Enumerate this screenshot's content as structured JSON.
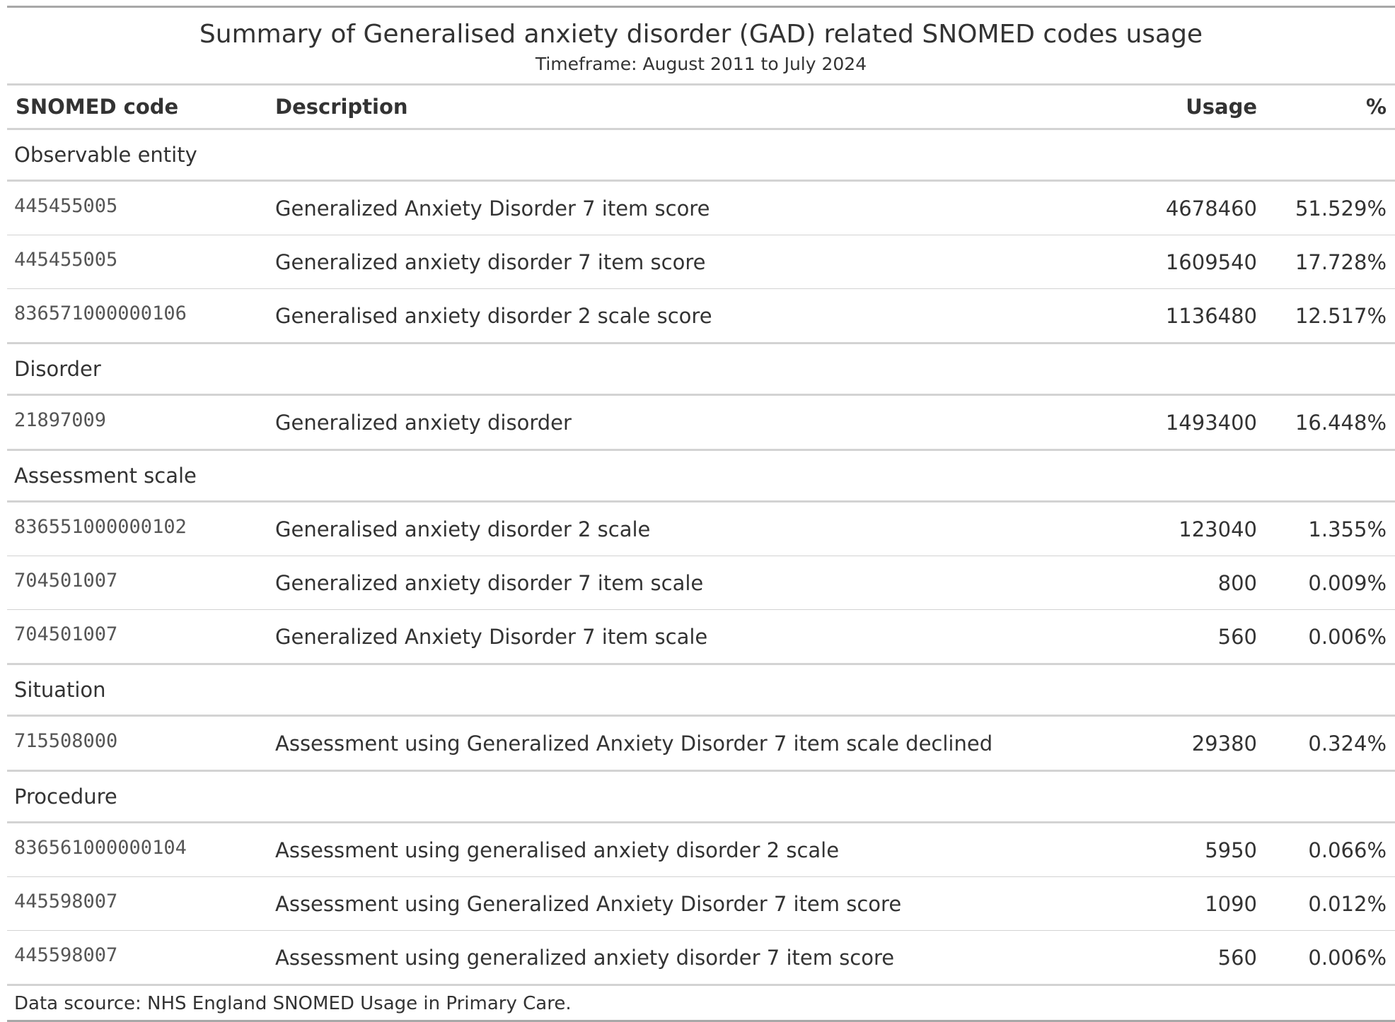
{
  "title": "Summary of Generalised anxiety disorder (GAD) related SNOMED codes usage",
  "subtitle": "Timeframe: August 2011 to July 2024",
  "columns": {
    "code": "SNOMED code",
    "description": "Description",
    "usage": "Usage",
    "percent": "%"
  },
  "groups": [
    {
      "name": "Observable entity",
      "rows": [
        {
          "code": "445455005",
          "description": "Generalized Anxiety Disorder 7 item score",
          "usage": "4678460",
          "percent": "51.529%"
        },
        {
          "code": "445455005",
          "description": "Generalized anxiety disorder 7 item score",
          "usage": "1609540",
          "percent": "17.728%"
        },
        {
          "code": "836571000000106",
          "description": "Generalised anxiety disorder 2 scale score",
          "usage": "1136480",
          "percent": "12.517%"
        }
      ]
    },
    {
      "name": "Disorder",
      "rows": [
        {
          "code": "21897009",
          "description": "Generalized anxiety disorder",
          "usage": "1493400",
          "percent": "16.448%"
        }
      ]
    },
    {
      "name": "Assessment scale",
      "rows": [
        {
          "code": "836551000000102",
          "description": "Generalised anxiety disorder 2 scale",
          "usage": "123040",
          "percent": "1.355%"
        },
        {
          "code": "704501007",
          "description": "Generalized anxiety disorder 7 item scale",
          "usage": "800",
          "percent": "0.009%"
        },
        {
          "code": "704501007",
          "description": "Generalized Anxiety Disorder 7 item scale",
          "usage": "560",
          "percent": "0.006%"
        }
      ]
    },
    {
      "name": "Situation",
      "rows": [
        {
          "code": "715508000",
          "description": "Assessment using Generalized Anxiety Disorder 7 item scale declined",
          "usage": "29380",
          "percent": "0.324%"
        }
      ]
    },
    {
      "name": "Procedure",
      "rows": [
        {
          "code": "836561000000104",
          "description": "Assessment using generalised anxiety disorder 2 scale",
          "usage": "5950",
          "percent": "0.066%"
        },
        {
          "code": "445598007",
          "description": "Assessment using Generalized Anxiety Disorder 7 item score",
          "usage": "1090",
          "percent": "0.012%"
        },
        {
          "code": "445598007",
          "description": "Assessment using generalized anxiety disorder 7 item score",
          "usage": "560",
          "percent": "0.006%"
        }
      ]
    }
  ],
  "footer": "Data scource: NHS England SNOMED Usage in Primary Care."
}
